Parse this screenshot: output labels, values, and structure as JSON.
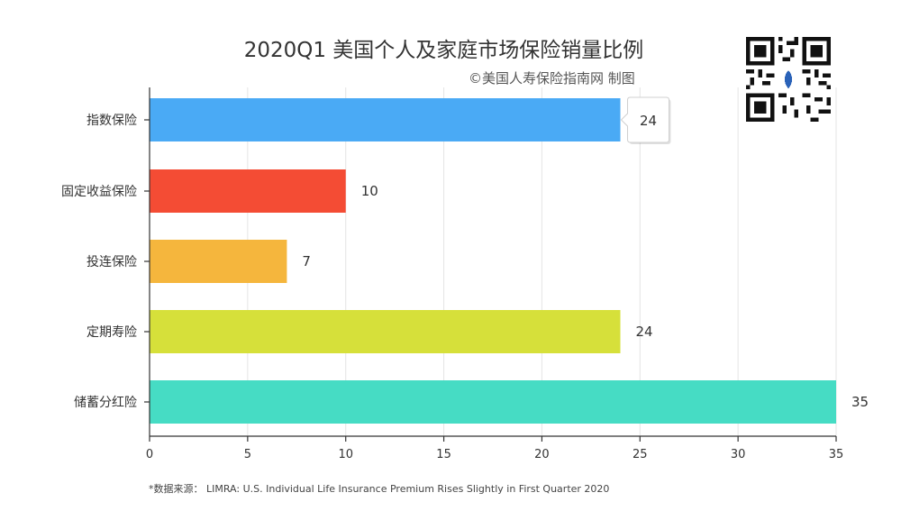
{
  "chart_data": {
    "type": "bar",
    "orientation": "horizontal",
    "title": "2020Q1 美国个人及家庭市场保险销量比例",
    "subtitle": "©美国人寿保险指南网 制图",
    "categories": [
      "指数保险",
      "固定收益保险",
      "投连保险",
      "定期寿险",
      "储蓄分红险"
    ],
    "values": [
      24,
      10,
      7,
      24,
      35
    ],
    "colors": [
      "#4aaaf5",
      "#f44c34",
      "#f5b63d",
      "#d6e03a",
      "#46dcc4"
    ],
    "xlim": [
      0,
      35
    ],
    "xticks": [
      0,
      5,
      10,
      15,
      20,
      25,
      30,
      35
    ],
    "grid": true,
    "highlighted_category": "指数保险",
    "source": "*数据来源： LIMRA: U.S. Individual Life Insurance Premium Rises Slightly in First Quarter 2020"
  }
}
